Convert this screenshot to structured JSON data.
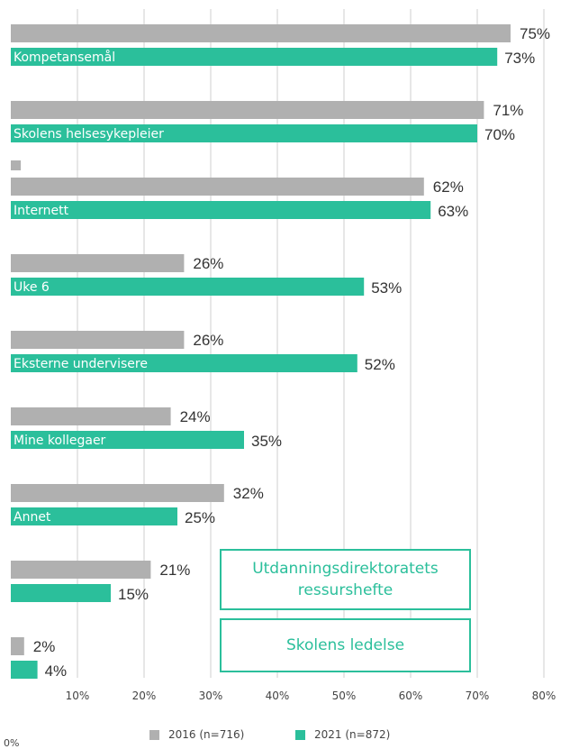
{
  "chart_data": {
    "type": "bar",
    "orientation": "horizontal",
    "categories": [
      "Kompetansemål",
      "Skolens helsesykepleier",
      "",
      "Internett",
      "Uke 6",
      "Eksterne undervisere",
      "Mine kollegaer",
      "Annet",
      "",
      ""
    ],
    "series": [
      {
        "name": "2016 (n=716)",
        "color": "#b0b0b0",
        "values": [
          75,
          71,
          1.5,
          62,
          26,
          26,
          24,
          32,
          21,
          2
        ],
        "labels": [
          "75%",
          "71%",
          "",
          "62%",
          "26%",
          "26%",
          "24%",
          "32%",
          "21%",
          "2%"
        ]
      },
      {
        "name": "2021 (n=872)",
        "color": "#2bbf9b",
        "values": [
          73,
          70,
          null,
          63,
          53,
          52,
          35,
          25,
          15,
          4
        ],
        "labels": [
          "73%",
          "70%",
          "",
          "63%",
          "53%",
          "52%",
          "35%",
          "25%",
          "15%",
          "4%"
        ]
      }
    ],
    "xlim": [
      0,
      80
    ],
    "xticks": [
      "10%",
      "20%",
      "30%",
      "40%",
      "50%",
      "60%",
      "70%",
      "80%"
    ],
    "zero_label": "0%",
    "grid": true,
    "legend_position": "bottom",
    "annotations": [
      "Utdanningsdirektoratets ressurshefte",
      "Skolens ledelse"
    ]
  }
}
